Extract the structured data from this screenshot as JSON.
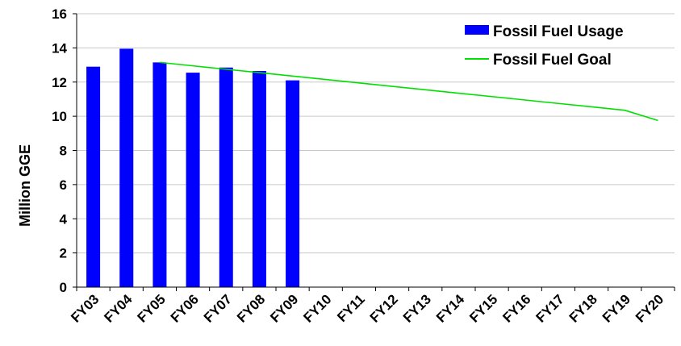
{
  "chart_data": {
    "type": "bar",
    "title": "",
    "xlabel": "",
    "ylabel": "Million GGE",
    "ylim": [
      0,
      16
    ],
    "yticks": [
      0,
      2,
      4,
      6,
      8,
      10,
      12,
      14,
      16
    ],
    "grid": true,
    "legend_position": "top-right",
    "categories": [
      "FY03",
      "FY04",
      "FY05",
      "FY06",
      "FY07",
      "FY08",
      "FY09",
      "FY10",
      "FY11",
      "FY12",
      "FY13",
      "FY14",
      "FY15",
      "FY16",
      "FY17",
      "FY18",
      "FY19",
      "FY20"
    ],
    "series": [
      {
        "name": "Fossil Fuel Usage",
        "type": "bar",
        "color": "#0000ff",
        "values": [
          12.9,
          13.95,
          13.15,
          12.55,
          12.85,
          12.65,
          12.1,
          null,
          null,
          null,
          null,
          null,
          null,
          null,
          null,
          null,
          null,
          null
        ]
      },
      {
        "name": "Fossil Fuel Goal",
        "type": "line",
        "color": "#00e000",
        "values": [
          null,
          null,
          13.15,
          12.95,
          12.75,
          12.55,
          12.35,
          12.15,
          11.95,
          11.75,
          11.55,
          11.35,
          11.15,
          10.95,
          10.75,
          10.55,
          10.35,
          9.75
        ]
      }
    ]
  }
}
